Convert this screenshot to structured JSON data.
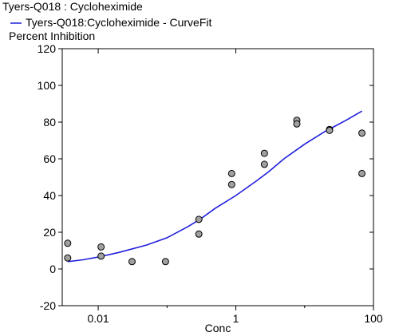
{
  "chart_data": {
    "type": "scatter",
    "title": "Tyers-Q018  : Cycloheximide",
    "legend": {
      "placement": "top-left",
      "entries": [
        {
          "label": "Tyers-Q018:Cycloheximide - CurveFit",
          "color": "#1f1fdc",
          "kind": "line"
        }
      ]
    },
    "ylabel": "Percent Inhibition",
    "xlabel": "Conc",
    "x_scale": "log",
    "xlim": [
      0.003,
      100
    ],
    "ylim": [
      -20,
      120
    ],
    "x_ticks": [
      {
        "value": 0.01,
        "label": "0.01"
      },
      {
        "value": 1,
        "label": "1"
      },
      {
        "value": 100,
        "label": "100"
      }
    ],
    "y_ticks": [
      -20,
      0,
      20,
      40,
      60,
      80,
      100,
      120
    ],
    "grid": false,
    "colors": {
      "curve": "#1f1fdc",
      "points_fill": "#a0a0a0",
      "points_stroke": "#000000"
    },
    "series": [
      {
        "name": "Tyers-Q018  : Cycloheximide",
        "kind": "points",
        "points": [
          [
            0.0036,
            14
          ],
          [
            0.0036,
            6
          ],
          [
            0.011,
            12
          ],
          [
            0.011,
            7
          ],
          [
            0.031,
            4
          ],
          [
            0.095,
            4
          ],
          [
            0.29,
            27
          ],
          [
            0.29,
            19
          ],
          [
            0.87,
            52
          ],
          [
            0.87,
            46
          ],
          [
            2.6,
            63
          ],
          [
            2.6,
            57
          ],
          [
            7.7,
            81
          ],
          [
            7.7,
            79
          ],
          [
            23,
            76
          ],
          [
            23,
            75.5
          ],
          [
            68,
            74
          ],
          [
            68,
            52
          ]
        ]
      },
      {
        "name": "Tyers-Q018:Cycloheximide - CurveFit",
        "kind": "curve",
        "points": [
          [
            0.0036,
            4
          ],
          [
            0.006,
            5
          ],
          [
            0.01,
            6.5
          ],
          [
            0.02,
            9
          ],
          [
            0.05,
            13
          ],
          [
            0.1,
            17
          ],
          [
            0.2,
            23
          ],
          [
            0.3,
            27
          ],
          [
            0.5,
            33
          ],
          [
            1,
            40
          ],
          [
            2,
            48
          ],
          [
            3,
            53
          ],
          [
            5,
            60
          ],
          [
            10,
            68
          ],
          [
            20,
            75
          ],
          [
            40,
            81
          ],
          [
            68,
            86
          ]
        ]
      }
    ]
  }
}
